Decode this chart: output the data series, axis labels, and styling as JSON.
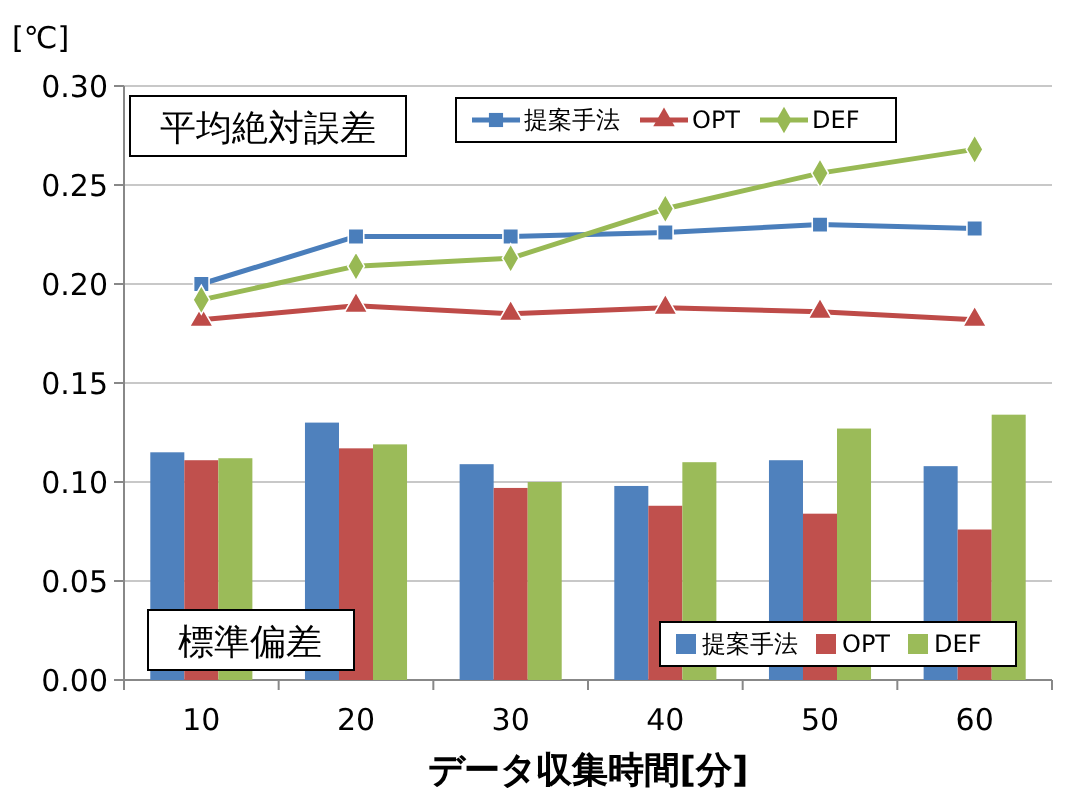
{
  "chart_data": {
    "type": "bar",
    "ylabel": "[℃]",
    "xlabel": "データ収集時間[分]",
    "categories": [
      "10",
      "20",
      "30",
      "40",
      "50",
      "60"
    ],
    "ylim": [
      0,
      0.3
    ],
    "yticks": [
      {
        "value": 0,
        "label": "0.00"
      },
      {
        "value": 0.05,
        "label": "0.05"
      },
      {
        "value": 0.1,
        "label": "0.10"
      },
      {
        "value": 0.15,
        "label": "0.15"
      },
      {
        "value": 0.2,
        "label": "0.20"
      },
      {
        "value": 0.25,
        "label": "0.25"
      },
      {
        "value": 0.3,
        "label": "0.30"
      }
    ],
    "grid": "y",
    "legend": "top",
    "annotations": [
      "平均絶対誤差",
      "標準偏差"
    ],
    "series": [
      {
        "name": "提案手法",
        "color": "#4f81bd",
        "values": [
          0.115,
          0.13,
          0.109,
          0.098,
          0.111,
          0.108
        ]
      },
      {
        "name": "OPT",
        "color": "#c0504d",
        "values": [
          0.111,
          0.117,
          0.097,
          0.088,
          0.084,
          0.076
        ]
      },
      {
        "name": "DEF",
        "color": "#9bbb59",
        "values": [
          0.112,
          0.119,
          0.1,
          0.11,
          0.127,
          0.134
        ]
      },
      {
        "type": "line",
        "name": "提案手法",
        "color": "#4a7ebb",
        "marker": "square",
        "values": [
          0.2,
          0.224,
          0.224,
          0.226,
          0.23,
          0.228
        ]
      },
      {
        "type": "line",
        "name": "OPT",
        "color": "#be4b48",
        "marker": "triangle",
        "values": [
          0.182,
          0.189,
          0.185,
          0.188,
          0.186,
          0.182
        ]
      },
      {
        "type": "line",
        "name": "DEF",
        "color": "#98b954",
        "marker": "diamond",
        "values": [
          0.192,
          0.209,
          0.213,
          0.238,
          0.256,
          0.268
        ]
      }
    ]
  }
}
